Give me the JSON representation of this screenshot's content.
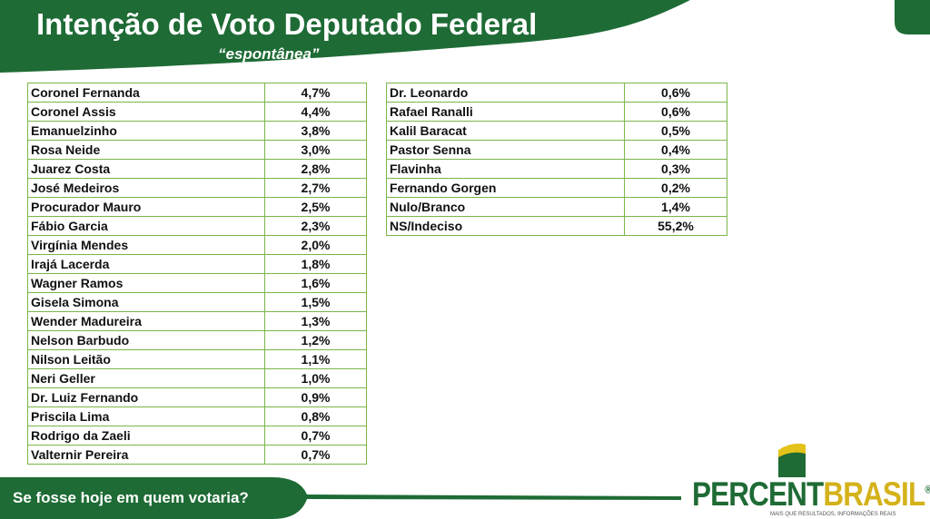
{
  "header": {
    "title": "Intenção de Voto Deputado Federal",
    "subtitle": "“espontânea”"
  },
  "tables": [
    {
      "rows": [
        [
          "Coronel Fernanda",
          "4,7%"
        ],
        [
          "Coronel Assis",
          "4,4%"
        ],
        [
          "Emanuelzinho",
          "3,8%"
        ],
        [
          "Rosa Neide",
          "3,0%"
        ],
        [
          "Juarez Costa",
          "2,8%"
        ],
        [
          "José Medeiros",
          "2,7%"
        ],
        [
          "Procurador Mauro",
          "2,5%"
        ],
        [
          "Fábio Garcia",
          "2,3%"
        ],
        [
          "Virgínia Mendes",
          "2,0%"
        ],
        [
          "Irajá Lacerda",
          "1,8%"
        ],
        [
          "Wagner Ramos",
          "1,6%"
        ],
        [
          "Gisela Simona",
          "1,5%"
        ],
        [
          "Wender Madureira",
          "1,3%"
        ],
        [
          "Nelson Barbudo",
          "1,2%"
        ],
        [
          "Nilson Leitão",
          "1,1%"
        ],
        [
          "Neri Geller",
          "1,0%"
        ],
        [
          "Dr. Luiz Fernando",
          "0,9%"
        ],
        [
          "Priscila Lima",
          "0,8%"
        ],
        [
          "Rodrigo da Zaeli",
          "0,7%"
        ],
        [
          "Valternir Pereira",
          "0,7%"
        ]
      ]
    },
    {
      "rows": [
        [
          "Dr. Leonardo",
          "0,6%"
        ],
        [
          "Rafael Ranalli",
          "0,6%"
        ],
        [
          "Kalil Baracat",
          "0,5%"
        ],
        [
          "Pastor Senna",
          "0,4%"
        ],
        [
          "Flavinha",
          "0,3%"
        ],
        [
          "Fernando Gorgen",
          "0,2%"
        ],
        [
          "Nulo/Branco",
          "1,4%"
        ],
        [
          "NS/Indeciso",
          "55,2%"
        ]
      ]
    }
  ],
  "footer": {
    "question": "Se fosse hoje em quem votaria?"
  },
  "logo": {
    "part1": "PERCENT",
    "part2": "BRASIL",
    "mark": "®",
    "tagline": "MAIS QUE RESULTADOS, INFORMAÇÕES REAIS"
  }
}
